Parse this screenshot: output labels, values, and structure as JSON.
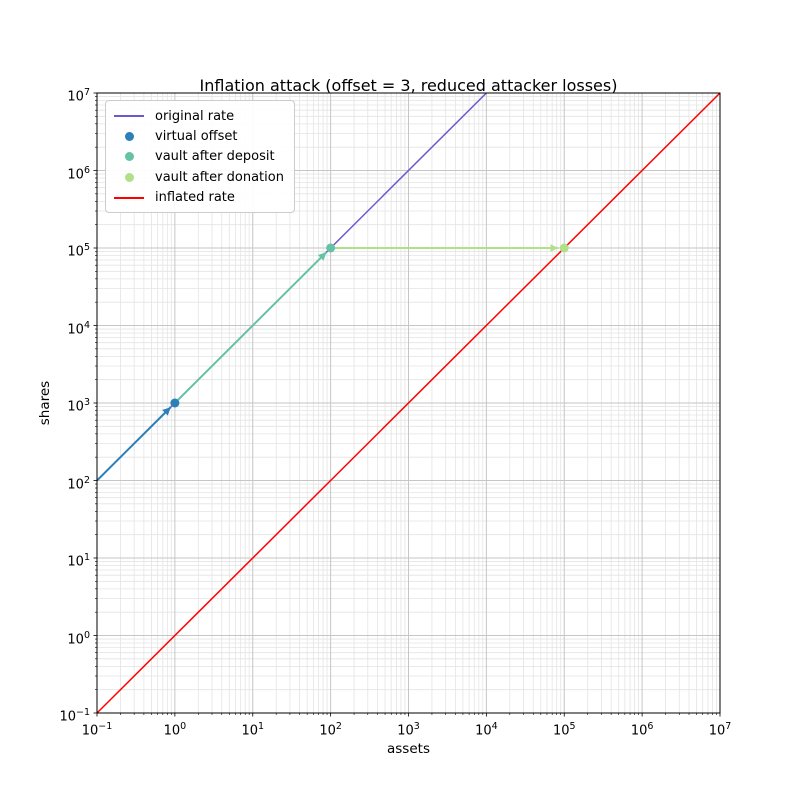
{
  "chart_data": {
    "type": "line",
    "title": "Inflation attack (offset = 3, reduced attacker losses)",
    "xlabel": "assets",
    "ylabel": "shares",
    "x_scale": "log",
    "y_scale": "log",
    "tick_base": 10,
    "x_tick_exponents": [
      -1,
      0,
      1,
      2,
      3,
      4,
      5,
      6,
      7
    ],
    "y_tick_exponents": [
      -1,
      0,
      1,
      2,
      3,
      4,
      5,
      6,
      7
    ],
    "xlim_exp": [
      -1,
      7
    ],
    "ylim_exp": [
      -1,
      7
    ],
    "grid": "major+minor",
    "legend_position": "upper left",
    "colors": {
      "original_rate": "#6a5acd",
      "virtual_offset": "#2d7fb8",
      "vault_after_deposit": "#66c2a5",
      "vault_after_donation": "#b2df8a",
      "inflated_rate": "#ff0000",
      "major_grid": "#c6c6c6",
      "minor_grid": "#e4e4e4",
      "spine": "#000000"
    },
    "series": [
      {
        "name": "original rate",
        "role": "line",
        "color": "#6a5acd",
        "width": 1.5,
        "points": [
          [
            0.1,
            100
          ],
          [
            10000,
            10000000
          ]
        ]
      },
      {
        "name": "inflated rate",
        "role": "line",
        "color": "#ff0000",
        "width": 1.5,
        "points": [
          [
            0.1,
            0.1
          ],
          [
            10000000,
            10000000
          ]
        ]
      },
      {
        "name": "offset arrow",
        "role": "arrow",
        "color": "#2d7fb8",
        "width": 2,
        "from": [
          0.1,
          100
        ],
        "to": [
          1,
          1000
        ]
      },
      {
        "name": "deposit arrow",
        "role": "arrow",
        "color": "#66c2a5",
        "width": 2,
        "from": [
          1,
          1000
        ],
        "to": [
          100,
          100000
        ]
      },
      {
        "name": "donation arrow",
        "role": "arrow",
        "color": "#b2df8a",
        "width": 2,
        "from": [
          100,
          100000
        ],
        "to": [
          100000,
          100000
        ]
      },
      {
        "name": "virtual offset",
        "role": "point",
        "color": "#2d7fb8",
        "x": 1,
        "y": 1000
      },
      {
        "name": "vault after deposit",
        "role": "point",
        "color": "#66c2a5",
        "x": 100,
        "y": 100000
      },
      {
        "name": "vault after donation",
        "role": "point",
        "color": "#b2df8a",
        "x": 100000,
        "y": 100000
      }
    ],
    "legend": [
      {
        "label": "original rate",
        "marker": "line",
        "color": "#6a5acd"
      },
      {
        "label": "virtual offset",
        "marker": "dot",
        "color": "#2d7fb8"
      },
      {
        "label": "vault after deposit",
        "marker": "dot",
        "color": "#66c2a5"
      },
      {
        "label": "vault after donation",
        "marker": "dot",
        "color": "#b2df8a"
      },
      {
        "label": "inflated rate",
        "marker": "line",
        "color": "#ff0000"
      }
    ]
  }
}
